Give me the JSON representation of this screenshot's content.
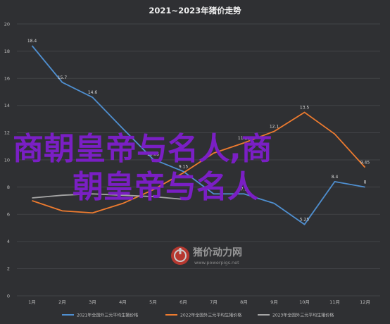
{
  "chart_data": {
    "type": "line",
    "title": "2021~2023年猪价走势",
    "categories": [
      "1月",
      "2月",
      "3月",
      "4月",
      "5月",
      "6月",
      "7月",
      "8月",
      "9月",
      "10月",
      "11月",
      "12月"
    ],
    "ylim": [
      0,
      20
    ],
    "yticks": [
      0,
      2,
      4,
      6,
      8,
      10,
      12,
      14,
      16,
      18,
      20
    ],
    "grid": true,
    "legend_position": "bottom",
    "series": [
      {
        "name": "2021年全国外三元平均生猪价格",
        "color": "#4f8fd0",
        "values": [
          18.4,
          15.7,
          14.6,
          12.3,
          10.05,
          9.15,
          7.5,
          7.5,
          6.8,
          5.25,
          8.4,
          8
        ]
      },
      {
        "name": "2022年全国外三元平均生猪价格",
        "color": "#ee7b2f",
        "values": [
          7,
          6.25,
          6.1,
          6.8,
          7.8,
          9.05,
          10.5,
          11.25,
          12.1,
          13.5,
          11.9,
          9.45
        ]
      },
      {
        "name": "2023年全国外三元平均生猪价格",
        "color": "#a5a5a5",
        "values": [
          7.2,
          7.4,
          7.5,
          7.4,
          7.3,
          7.1,
          null,
          null,
          null,
          null,
          null,
          null
        ]
      }
    ],
    "data_labels": [
      {
        "series": 0,
        "index": 0,
        "text": "18.4"
      },
      {
        "series": 0,
        "index": 1,
        "text": "15.7"
      },
      {
        "series": 0,
        "index": 2,
        "text": "14.6"
      },
      {
        "series": 0,
        "index": 4,
        "text": "10.05"
      },
      {
        "series": 0,
        "index": 5,
        "text": "9.15"
      },
      {
        "series": 0,
        "index": 7,
        "text": "7.5"
      },
      {
        "series": 0,
        "index": 9,
        "text": "5.25"
      },
      {
        "series": 0,
        "index": 10,
        "text": "8.4"
      },
      {
        "series": 0,
        "index": 11,
        "text": "8"
      },
      {
        "series": 1,
        "index": 7,
        "text": "11.25"
      },
      {
        "series": 1,
        "index": 8,
        "text": "12.1"
      },
      {
        "series": 1,
        "index": 9,
        "text": "13.5"
      },
      {
        "series": 1,
        "index": 11,
        "text": "9.45"
      }
    ]
  },
  "overlay": {
    "line1": "商朝皇帝与名人,商",
    "line2": "朝皇帝与名人"
  },
  "watermark": {
    "name": "猪价动力网",
    "url": "www.powerpigs.net",
    "icon": "pig-logo-icon"
  }
}
